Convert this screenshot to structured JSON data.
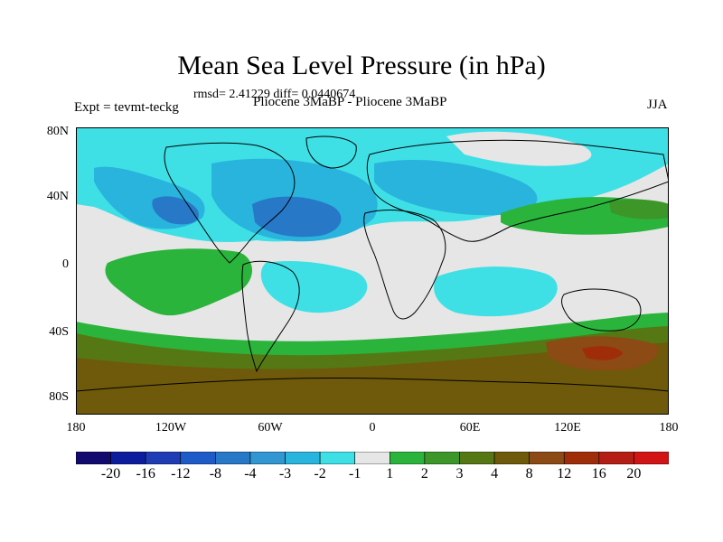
{
  "title": "Mean Sea Level Pressure (in hPa)",
  "stats": "rmsd= 2.41229 diff= 0.0440674",
  "experiment": "Expt = tevmt-teckg",
  "experiment_name": "Pliocene    3MaBP - Pliocene    3MaBP",
  "season": "JJA",
  "lat_labels": [
    "80N",
    "40N",
    "0",
    "40S",
    "80S"
  ],
  "lon_labels": [
    "180",
    "120W",
    "60W",
    "0",
    "60E",
    "120E",
    "180"
  ],
  "colorbar": {
    "labels": [
      "-20",
      "-16",
      "-12",
      "-8",
      "-4",
      "-3",
      "-2",
      "-1",
      "1",
      "2",
      "3",
      "4",
      "8",
      "12",
      "16",
      "20"
    ],
    "colors": [
      "#120a6e",
      "#0c1e9e",
      "#1e3cb4",
      "#1e5ac8",
      "#2878c8",
      "#3296d2",
      "#28b4dc",
      "#3ee0e6",
      "#e6e6e6",
      "#2ab43c",
      "#3c9628",
      "#557814",
      "#6e5a0a",
      "#8c4a14",
      "#a02d0a",
      "#b41e14",
      "#d21414"
    ]
  },
  "palette": {
    "ocean_neutral": "#e6e6e6",
    "cyan": "#3ee0e6",
    "light_blue": "#28b4dc",
    "mid_blue": "#3296d2",
    "blue": "#2878c8",
    "green": "#2ab43c",
    "dark_green": "#3c9628",
    "olive": "#557814",
    "brown": "#6e5a0a",
    "rust": "#8c4a14",
    "red_brown": "#a02d0a",
    "coast": "#000000"
  }
}
